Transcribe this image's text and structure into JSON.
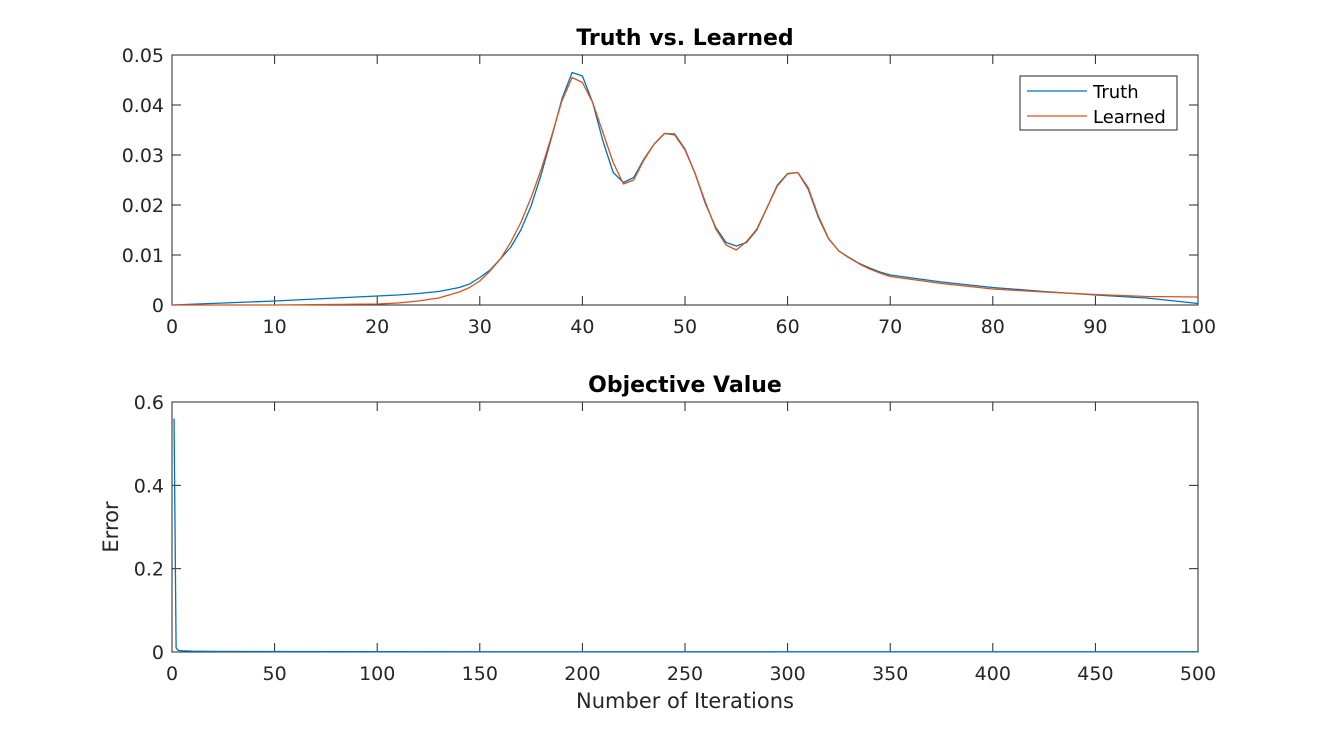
{
  "chart_data": [
    {
      "type": "line",
      "title": "Truth vs. Learned",
      "xlabel": "",
      "ylabel": "",
      "xlim": [
        0,
        100
      ],
      "ylim": [
        0,
        0.05
      ],
      "xticks": [
        0,
        10,
        20,
        30,
        40,
        50,
        60,
        70,
        80,
        90,
        100
      ],
      "xtick_labels": [
        "0",
        "10",
        "20",
        "30",
        "40",
        "50",
        "60",
        "70",
        "80",
        "90",
        "100"
      ],
      "yticks": [
        0,
        0.01,
        0.02,
        0.03,
        0.04,
        0.05
      ],
      "ytick_labels": [
        "0",
        "0.01",
        "0.02",
        "0.03",
        "0.04",
        "0.05"
      ],
      "grid": false,
      "legend": "top-right",
      "series": [
        {
          "name": "Truth",
          "color": "#0072BD",
          "x": [
            0,
            5,
            10,
            15,
            20,
            22,
            24,
            26,
            28,
            29,
            30,
            31,
            32,
            33,
            34,
            35,
            36,
            37,
            38,
            39,
            40,
            41,
            42,
            43,
            44,
            45,
            46,
            47,
            48,
            49,
            50,
            51,
            52,
            53,
            54,
            55,
            56,
            57,
            58,
            59,
            60,
            61,
            62,
            63,
            64,
            65,
            66,
            67,
            68,
            69,
            70,
            75,
            80,
            85,
            90,
            95,
            100
          ],
          "y": [
            0,
            0.0004,
            0.0008,
            0.0013,
            0.0018,
            0.002,
            0.0023,
            0.0027,
            0.0035,
            0.0042,
            0.0055,
            0.007,
            0.0092,
            0.0115,
            0.015,
            0.0198,
            0.0262,
            0.0335,
            0.0412,
            0.0465,
            0.0458,
            0.0405,
            0.0328,
            0.0265,
            0.0245,
            0.0255,
            0.0292,
            0.0322,
            0.0343,
            0.0342,
            0.0312,
            0.0262,
            0.0202,
            0.0155,
            0.0125,
            0.0118,
            0.0125,
            0.015,
            0.0195,
            0.024,
            0.0263,
            0.0265,
            0.0232,
            0.0175,
            0.0132,
            0.0108,
            0.0095,
            0.0083,
            0.0074,
            0.0066,
            0.006,
            0.0046,
            0.0035,
            0.0027,
            0.002,
            0.0014,
            0.0003
          ]
        },
        {
          "name": "Learned",
          "color": "#D95319",
          "x": [
            0,
            5,
            10,
            15,
            20,
            22,
            24,
            26,
            28,
            29,
            30,
            31,
            32,
            33,
            34,
            35,
            36,
            37,
            38,
            39,
            40,
            41,
            42,
            43,
            44,
            45,
            46,
            47,
            48,
            49,
            50,
            51,
            52,
            53,
            54,
            55,
            56,
            57,
            58,
            59,
            60,
            61,
            62,
            63,
            64,
            65,
            66,
            67,
            68,
            69,
            70,
            75,
            80,
            85,
            90,
            95,
            100
          ],
          "y": [
            0,
            0,
            0,
            0.0001,
            0.0002,
            0.0004,
            0.0008,
            0.0014,
            0.0026,
            0.0035,
            0.0048,
            0.0068,
            0.0092,
            0.0125,
            0.0165,
            0.0215,
            0.0272,
            0.0338,
            0.0408,
            0.0455,
            0.0445,
            0.0405,
            0.0345,
            0.0285,
            0.0242,
            0.025,
            0.029,
            0.0322,
            0.0343,
            0.034,
            0.031,
            0.0262,
            0.0205,
            0.0152,
            0.012,
            0.011,
            0.0127,
            0.0152,
            0.0195,
            0.0238,
            0.0262,
            0.0265,
            0.0235,
            0.0178,
            0.0133,
            0.0108,
            0.0094,
            0.0082,
            0.0072,
            0.0064,
            0.0057,
            0.0043,
            0.0032,
            0.0026,
            0.0021,
            0.0017,
            0.0016
          ]
        }
      ]
    },
    {
      "type": "line",
      "title": "Objective Value",
      "xlabel": "Number of Iterations",
      "ylabel": "Error",
      "xlim": [
        0,
        500
      ],
      "ylim": [
        0,
        0.6
      ],
      "xticks": [
        0,
        50,
        100,
        150,
        200,
        250,
        300,
        350,
        400,
        450,
        500
      ],
      "xtick_labels": [
        "0",
        "50",
        "100",
        "150",
        "200",
        "250",
        "300",
        "350",
        "400",
        "450",
        "500"
      ],
      "yticks": [
        0,
        0.2,
        0.4,
        0.6
      ],
      "ytick_labels": [
        "0",
        "0.2",
        "0.4",
        "0.6"
      ],
      "grid": false,
      "series": [
        {
          "color": "#0072BD",
          "x": [
            1,
            2,
            3,
            5,
            10,
            20,
            50,
            100,
            200,
            300,
            400,
            500
          ],
          "y": [
            0.56,
            0.01,
            0.004,
            0.003,
            0.002,
            0.0015,
            0.001,
            0.0008,
            0.0006,
            0.0005,
            0.0004,
            0.0004
          ]
        }
      ]
    }
  ]
}
